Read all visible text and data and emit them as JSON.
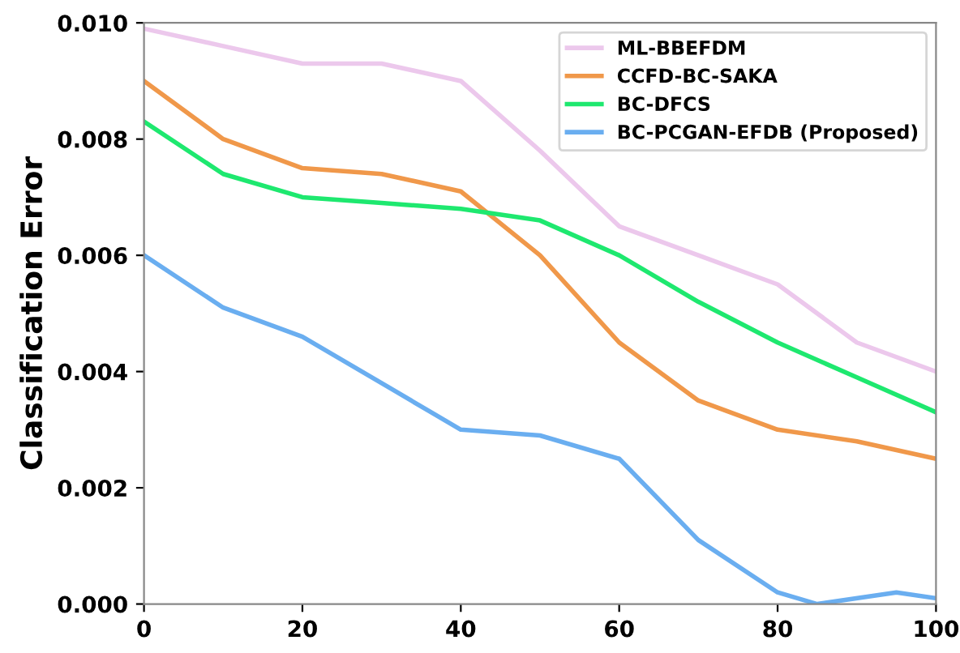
{
  "chart_data": {
    "type": "line",
    "ylabel": "Classification Error",
    "xlim": [
      0,
      100
    ],
    "ylim": [
      0,
      0.01
    ],
    "xticks": [
      0,
      20,
      40,
      60,
      80,
      100
    ],
    "yticks": [
      {
        "value": 0,
        "label": "0.000"
      },
      {
        "value": 0.002,
        "label": "0.002"
      },
      {
        "value": 0.004,
        "label": "0.004"
      },
      {
        "value": 0.006,
        "label": "0.006"
      },
      {
        "value": 0.008,
        "label": "0.008"
      },
      {
        "value": 0.01,
        "label": "0.010"
      }
    ],
    "x": [
      0,
      10,
      20,
      30,
      40,
      50,
      60,
      70,
      80,
      90,
      100
    ],
    "series": [
      {
        "name": "ML-BBEFDM",
        "color": "#ecc8ec",
        "values": [
          0.0099,
          0.0096,
          0.0093,
          0.0093,
          0.009,
          0.0078,
          0.0065,
          0.006,
          0.0055,
          0.0045,
          0.004
        ]
      },
      {
        "name": "CCFD-BC-SAKA",
        "color": "#f0984a",
        "values": [
          0.009,
          0.008,
          0.0075,
          0.0074,
          0.0071,
          0.006,
          0.0045,
          0.0035,
          0.003,
          0.0028,
          0.0025
        ]
      },
      {
        "name": "BC-DFCS",
        "color": "#1ee86f",
        "values": [
          0.0083,
          0.0074,
          0.007,
          0.0069,
          0.0068,
          0.0066,
          0.006,
          0.0052,
          0.0045,
          0.0039,
          0.0033
        ]
      },
      {
        "name": "BC-PCGAN-EFDB (Proposed)",
        "color": "#6aaef0",
        "x": [
          0,
          10,
          20,
          30,
          40,
          50,
          60,
          70,
          80,
          85,
          95,
          100
        ],
        "values": [
          0.006,
          0.0051,
          0.0046,
          0.0038,
          0.003,
          0.0029,
          0.0025,
          0.0011,
          0.0002,
          0.0,
          0.0002,
          0.0001
        ]
      }
    ],
    "legend": "top right",
    "grid": false
  }
}
